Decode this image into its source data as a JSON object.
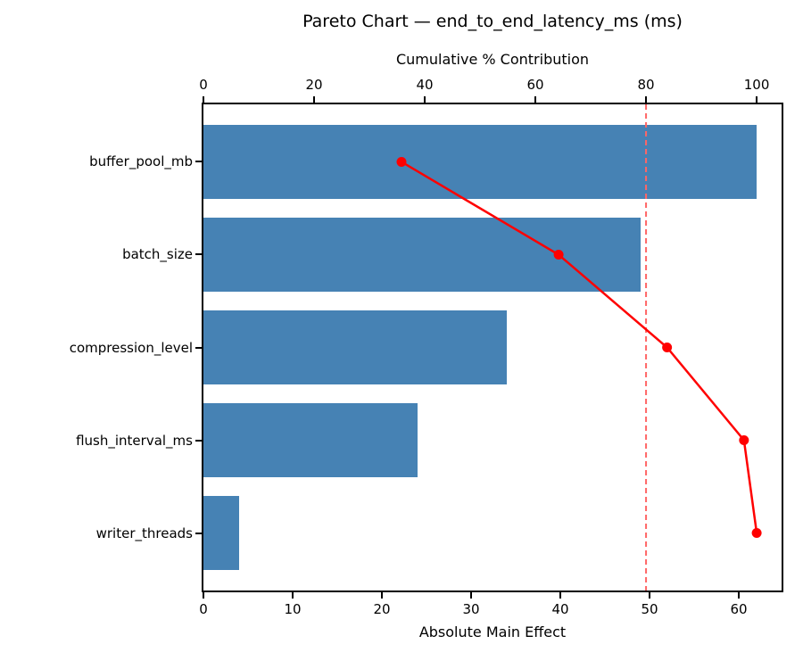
{
  "colors": {
    "bar": "#4682b4",
    "cumulative_line": "#ff0000",
    "marker": "#ff0000",
    "reference_line": "#ff6666",
    "axis": "#000000",
    "text": "#000000",
    "background": "#ffffff"
  },
  "chart_data": {
    "type": "bar",
    "orientation": "horizontal",
    "title": "Pareto Chart — end_to_end_latency_ms (ms)",
    "xlabel": "Absolute Main Effect",
    "top_xlabel": "Cumulative % Contribution",
    "categories": [
      "buffer_pool_mb",
      "batch_size",
      "compression_level",
      "flush_interval_ms",
      "writer_threads"
    ],
    "values": [
      62,
      49,
      34,
      24,
      4
    ],
    "series": [
      {
        "name": "Absolute Main Effect",
        "type": "bar",
        "values": [
          62,
          49,
          34,
          24,
          4
        ]
      },
      {
        "name": "Cumulative % Contribution",
        "type": "line",
        "values": [
          35.8,
          64.2,
          83.8,
          97.7,
          100.0
        ]
      }
    ],
    "cumulative_pct": [
      35.8,
      64.2,
      83.8,
      97.7,
      100.0
    ],
    "x_ticks_bottom": [
      0,
      10,
      20,
      30,
      40,
      50,
      60
    ],
    "x_ticks_top": [
      0,
      20,
      40,
      60,
      80,
      100
    ],
    "xlim_bottom": [
      0,
      64.8
    ],
    "xlim_top": [
      0,
      104.5
    ],
    "reference_line_pct": 80,
    "bar_fraction_of_slot": 0.8,
    "grid": false,
    "legend": "none"
  }
}
